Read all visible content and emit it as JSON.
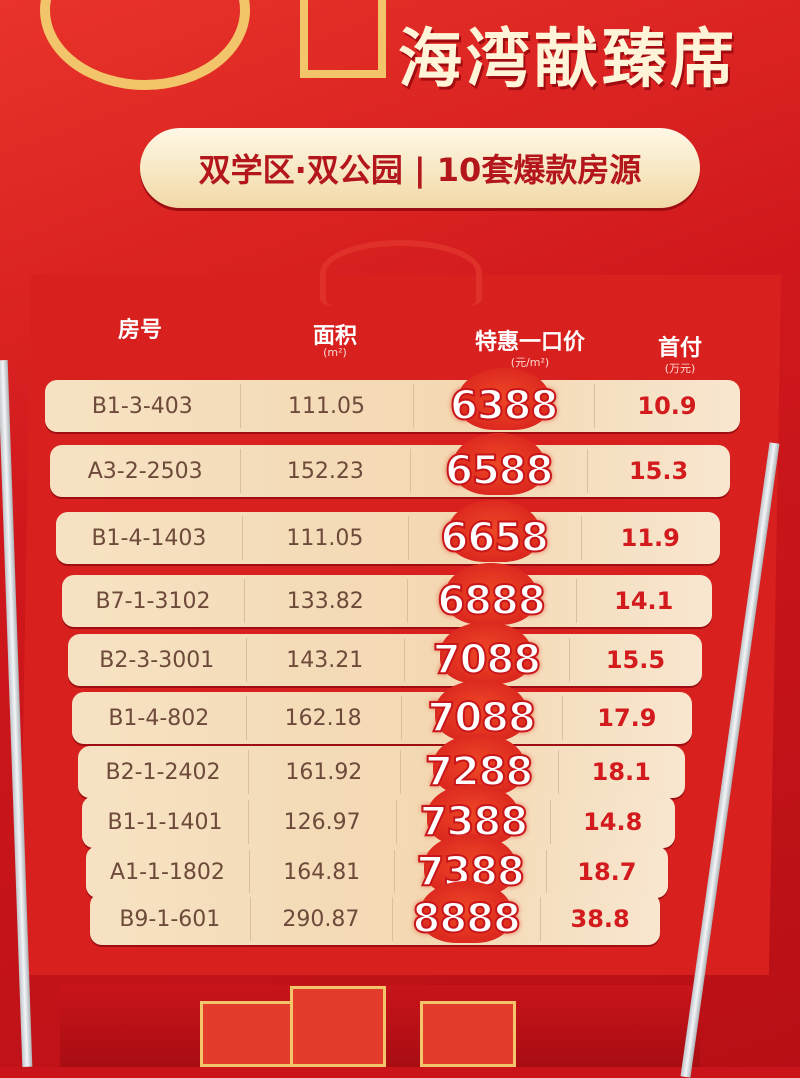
{
  "banner": {
    "title": "海湾献臻席",
    "subtitle": "双学区·双公园 | 10套爆款房源"
  },
  "table": {
    "headers": [
      {
        "label": "房号",
        "unit": ""
      },
      {
        "label": "面积",
        "unit": "(m²)"
      },
      {
        "label": "特惠一口价",
        "unit": "(元/m²)"
      },
      {
        "label": "首付",
        "unit": "(万元)"
      }
    ],
    "rows": [
      {
        "unit": "B1-3-403",
        "area": "111.05",
        "price": "6388",
        "down_payment": "10.9"
      },
      {
        "unit": "A3-2-2503",
        "area": "152.23",
        "price": "6588",
        "down_payment": "15.3"
      },
      {
        "unit": "B1-4-1403",
        "area": "111.05",
        "price": "6658",
        "down_payment": "11.9"
      },
      {
        "unit": "B7-1-3102",
        "area": "133.82",
        "price": "6888",
        "down_payment": "14.1"
      },
      {
        "unit": "B2-3-3001",
        "area": "143.21",
        "price": "7088",
        "down_payment": "15.5"
      },
      {
        "unit": "B1-4-802",
        "area": "162.18",
        "price": "7088",
        "down_payment": "17.9"
      },
      {
        "unit": "B2-1-2402",
        "area": "161.92",
        "price": "7288",
        "down_payment": "18.1"
      },
      {
        "unit": "B1-1-1401",
        "area": "126.97",
        "price": "7388",
        "down_payment": "14.8"
      },
      {
        "unit": "A1-1-1802",
        "area": "164.81",
        "price": "7388",
        "down_payment": "18.7"
      },
      {
        "unit": "B9-1-601",
        "area": "290.87",
        "price": "8888",
        "down_payment": "38.8"
      }
    ]
  },
  "colors": {
    "poster_red": "#d8201f",
    "row_cream": "#f4dcb8",
    "price_red": "#d31b1e"
  }
}
